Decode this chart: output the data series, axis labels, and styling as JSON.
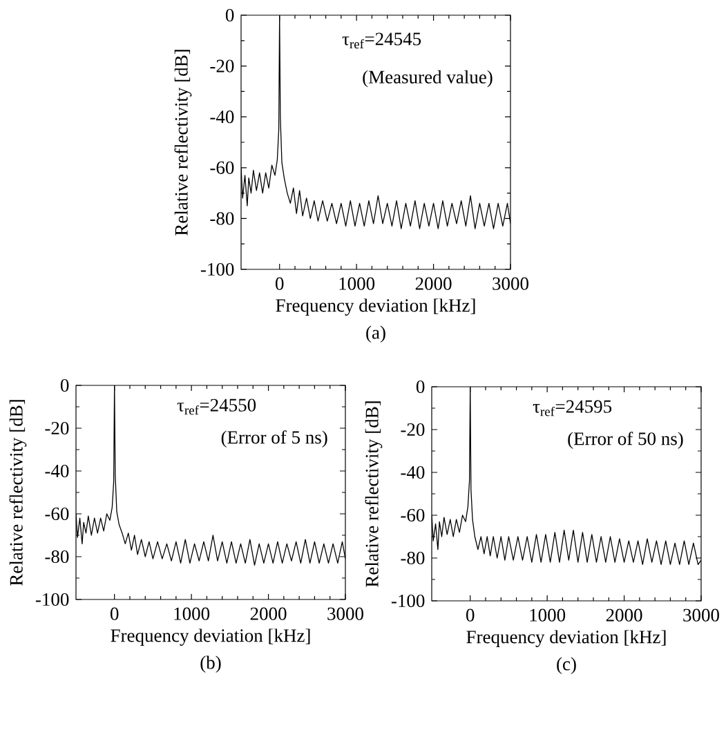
{
  "chart_data": [
    {
      "type": "line",
      "title": "(a)",
      "xlabel": "Frequency deviation [kHz]",
      "ylabel": "Relative reflectivity    [dB]",
      "annotations": [
        "τ$_{ref}$=24545",
        "(Measured value)"
      ],
      "xlim": [
        -500,
        3000
      ],
      "ylim": [
        -100,
        0
      ],
      "xticks": [
        0,
        1000,
        2000,
        3000
      ],
      "yticks": [
        -100,
        -80,
        -60,
        -40,
        -20,
        0
      ],
      "x": [
        -500,
        -480,
        -450,
        -420,
        -400,
        -370,
        -340,
        -300,
        -260,
        -220,
        -180,
        -140,
        -100,
        -60,
        -30,
        -10,
        0,
        10,
        30,
        60,
        100,
        140,
        180,
        220,
        260,
        300,
        350,
        400,
        450,
        500,
        560,
        620,
        680,
        740,
        800,
        860,
        920,
        980,
        1040,
        1100,
        1160,
        1220,
        1280,
        1340,
        1400,
        1460,
        1520,
        1580,
        1640,
        1700,
        1760,
        1820,
        1880,
        1940,
        2000,
        2060,
        2120,
        2180,
        2240,
        2300,
        2360,
        2420,
        2480,
        2540,
        2600,
        2660,
        2720,
        2780,
        2840,
        2900,
        2960,
        3000
      ],
      "series": [
        {
          "color": "#000000",
          "values": [
            -60,
            -72,
            -63,
            -75,
            -64,
            -70,
            -61,
            -69,
            -62,
            -70,
            -62,
            -68,
            -59,
            -63,
            -57,
            -45,
            0,
            -40,
            -58,
            -64,
            -70,
            -74,
            -68,
            -78,
            -69,
            -79,
            -72,
            -80,
            -73,
            -81,
            -73,
            -81,
            -74,
            -82,
            -74,
            -83,
            -73,
            -83,
            -74,
            -83,
            -73,
            -82,
            -71,
            -82,
            -74,
            -83,
            -73,
            -84,
            -74,
            -83,
            -73,
            -84,
            -74,
            -83,
            -74,
            -84,
            -73,
            -83,
            -74,
            -82,
            -73,
            -83,
            -71,
            -84,
            -74,
            -83,
            -74,
            -84,
            -74,
            -83,
            -74,
            -82
          ]
        }
      ]
    },
    {
      "type": "line",
      "title": "(b)",
      "xlabel": "Frequency deviation [kHz]",
      "ylabel": "Relative reflectivity    [dB]",
      "annotations": [
        "τ$_{ref}$=24550",
        "(Error of 5 ns)"
      ],
      "xlim": [
        -500,
        3000
      ],
      "ylim": [
        -100,
        0
      ],
      "xticks": [
        0,
        1000,
        2000,
        3000
      ],
      "yticks": [
        -100,
        -80,
        -60,
        -40,
        -20,
        0
      ],
      "x": [
        -500,
        -480,
        -450,
        -420,
        -400,
        -370,
        -340,
        -300,
        -260,
        -220,
        -180,
        -140,
        -100,
        -60,
        -30,
        -10,
        0,
        10,
        30,
        60,
        100,
        140,
        180,
        220,
        260,
        300,
        350,
        400,
        450,
        500,
        560,
        620,
        680,
        740,
        800,
        860,
        920,
        980,
        1040,
        1100,
        1160,
        1220,
        1280,
        1340,
        1400,
        1460,
        1520,
        1580,
        1640,
        1700,
        1760,
        1820,
        1880,
        1940,
        2000,
        2060,
        2120,
        2180,
        2240,
        2300,
        2360,
        2420,
        2480,
        2540,
        2600,
        2660,
        2720,
        2780,
        2840,
        2900,
        2960,
        3000
      ],
      "series": [
        {
          "color": "#000000",
          "values": [
            -60,
            -71,
            -62,
            -74,
            -64,
            -69,
            -61,
            -70,
            -62,
            -69,
            -62,
            -68,
            -60,
            -63,
            -57,
            -45,
            0,
            -42,
            -59,
            -65,
            -69,
            -74,
            -69,
            -77,
            -70,
            -79,
            -72,
            -80,
            -73,
            -81,
            -73,
            -81,
            -74,
            -82,
            -73,
            -83,
            -72,
            -83,
            -74,
            -82,
            -73,
            -82,
            -70,
            -82,
            -73,
            -83,
            -73,
            -83,
            -74,
            -83,
            -72,
            -84,
            -74,
            -83,
            -74,
            -83,
            -73,
            -83,
            -74,
            -82,
            -73,
            -83,
            -72,
            -83,
            -73,
            -83,
            -74,
            -83,
            -74,
            -83,
            -73,
            -81
          ]
        }
      ]
    },
    {
      "type": "line",
      "title": "(c)",
      "xlabel": "Frequency deviation [kHz]",
      "ylabel": "Relative reflectivity    [dB]",
      "annotations": [
        "τ$_{ref}$=24595",
        "(Error of 50 ns)"
      ],
      "xlim": [
        -500,
        3000
      ],
      "ylim": [
        -100,
        0
      ],
      "xticks": [
        0,
        1000,
        2000,
        3000
      ],
      "yticks": [
        -100,
        -80,
        -60,
        -40,
        -20,
        0
      ],
      "x": [
        -500,
        -480,
        -450,
        -420,
        -400,
        -370,
        -340,
        -300,
        -260,
        -220,
        -180,
        -140,
        -100,
        -60,
        -30,
        -10,
        0,
        10,
        30,
        60,
        100,
        140,
        180,
        220,
        260,
        300,
        350,
        400,
        450,
        500,
        560,
        620,
        680,
        740,
        800,
        860,
        920,
        980,
        1040,
        1100,
        1160,
        1220,
        1280,
        1340,
        1400,
        1460,
        1520,
        1580,
        1640,
        1700,
        1760,
        1820,
        1880,
        1940,
        2000,
        2060,
        2120,
        2180,
        2240,
        2300,
        2360,
        2420,
        2480,
        2540,
        2600,
        2660,
        2720,
        2780,
        2840,
        2900,
        2960,
        3000
      ],
      "series": [
        {
          "color": "#000000",
          "values": [
            -60,
            -72,
            -64,
            -76,
            -63,
            -70,
            -61,
            -69,
            -62,
            -70,
            -62,
            -68,
            -60,
            -63,
            -56,
            -44,
            0,
            -48,
            -62,
            -70,
            -76,
            -70,
            -78,
            -70,
            -79,
            -70,
            -80,
            -70,
            -81,
            -70,
            -81,
            -70,
            -81,
            -70,
            -82,
            -69,
            -82,
            -69,
            -82,
            -68,
            -82,
            -67,
            -81,
            -67,
            -82,
            -68,
            -82,
            -69,
            -82,
            -70,
            -82,
            -70,
            -82,
            -71,
            -82,
            -72,
            -82,
            -72,
            -83,
            -71,
            -82,
            -72,
            -83,
            -72,
            -83,
            -73,
            -83,
            -72,
            -83,
            -73,
            -83,
            -81
          ]
        }
      ]
    }
  ]
}
